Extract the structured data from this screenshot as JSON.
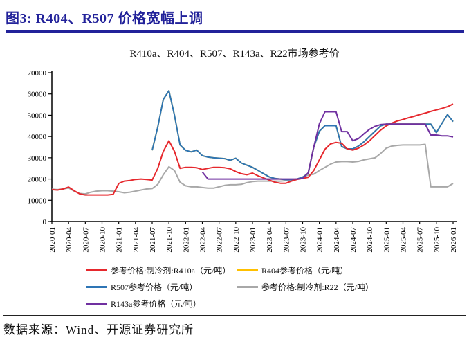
{
  "header": {
    "title": "图3:  R404、R507 价格宽幅上调",
    "accent_color": "#22229a"
  },
  "chart_data": {
    "type": "line",
    "title": "R410a、R404、R507、R143a、R22市场参考价",
    "ylabel": "",
    "xlabel": "",
    "ylim": [
      0,
      70000
    ],
    "ytick_step": 10000,
    "x_tick_every": 3,
    "grid": false,
    "legend_position": "bottom",
    "x": [
      "2020-01",
      "2020-02",
      "2020-03",
      "2020-04",
      "2020-05",
      "2020-06",
      "2020-07",
      "2020-08",
      "2020-09",
      "2020-10",
      "2020-11",
      "2020-12",
      "2021-01",
      "2021-02",
      "2021-03",
      "2021-04",
      "2021-05",
      "2021-06",
      "2021-07",
      "2021-08",
      "2021-09",
      "2021-10",
      "2021-11",
      "2021-12",
      "2022-01",
      "2022-02",
      "2022-03",
      "2022-04",
      "2022-05",
      "2022-06",
      "2022-07",
      "2022-08",
      "2022-09",
      "2022-10",
      "2022-11",
      "2022-12",
      "2023-01",
      "2023-02",
      "2023-03",
      "2023-04",
      "2023-05",
      "2023-06",
      "2023-07",
      "2023-08",
      "2023-09",
      "2023-10",
      "2023-11",
      "2023-12",
      "2024-01",
      "2024-02",
      "2024-03",
      "2024-04",
      "2024-05",
      "2024-06",
      "2024-07",
      "2024-08",
      "2024-09",
      "2024-10",
      "2024-11",
      "2024-12",
      "2025-01",
      "2025-02",
      "2025-03",
      "2025-04",
      "2025-05",
      "2025-06",
      "2025-07",
      "2025-08",
      "2025-09",
      "2025-10",
      "2025-11",
      "2025-12",
      "2026-01"
    ],
    "series": [
      {
        "name": "R404参考价格（元/吨）",
        "color": "#ffc000",
        "values": [
          null,
          null,
          null,
          null,
          null,
          null,
          null,
          null,
          null,
          null,
          null,
          null,
          null,
          null,
          null,
          null,
          null,
          null,
          33500,
          44500,
          57500,
          61500,
          50000,
          36000,
          33500,
          32800,
          33600,
          31000,
          30300,
          30000,
          29800,
          29600,
          28800,
          29800,
          27500,
          26500,
          25500,
          24000,
          22500,
          21000,
          20300,
          20000,
          19700,
          19700,
          20000,
          20800,
          22800,
          35000,
          42500,
          45100,
          45100,
          45100,
          35300,
          34200,
          34200,
          35500,
          37500,
          40000,
          42500,
          45000,
          45800,
          45800,
          45800,
          45800,
          45800,
          45800,
          45800,
          45800,
          45800,
          41800,
          46200,
          50300,
          47000
        ]
      },
      {
        "name": "参考价格:制冷剂:R22（元/吨）",
        "color": "#a8a8a8",
        "values": [
          15200,
          15000,
          15300,
          15800,
          14300,
          13200,
          13000,
          13800,
          14300,
          14500,
          14500,
          14300,
          14000,
          13500,
          13800,
          14300,
          14800,
          15300,
          15500,
          17500,
          22000,
          25800,
          24000,
          18500,
          16800,
          16300,
          16300,
          16000,
          15700,
          15700,
          16300,
          17000,
          17300,
          17300,
          17500,
          18300,
          18800,
          19000,
          19000,
          19000,
          19000,
          19000,
          19200,
          19500,
          20000,
          21000,
          21800,
          22300,
          24000,
          25500,
          27000,
          28000,
          28200,
          28200,
          28000,
          28300,
          29000,
          29500,
          30000,
          32000,
          34500,
          35500,
          35800,
          36000,
          36000,
          36000,
          36000,
          36300,
          16300,
          16300,
          16300,
          16300,
          17900
        ]
      },
      {
        "name": "R507参考价格（元/吨）",
        "color": "#2e75b5",
        "values": [
          null,
          null,
          null,
          null,
          null,
          null,
          null,
          null,
          null,
          null,
          null,
          null,
          null,
          null,
          null,
          null,
          null,
          null,
          33500,
          44500,
          57500,
          61500,
          50000,
          36000,
          33500,
          32800,
          33600,
          31000,
          30300,
          30000,
          29800,
          29600,
          28800,
          29800,
          27500,
          26500,
          25500,
          24000,
          22500,
          21000,
          20300,
          20000,
          19700,
          19700,
          20000,
          20800,
          22800,
          35000,
          42500,
          45100,
          45100,
          45100,
          35300,
          34200,
          34200,
          35500,
          37500,
          40000,
          42500,
          45000,
          45800,
          45800,
          45800,
          45800,
          45800,
          45800,
          45800,
          45800,
          45800,
          41800,
          46200,
          50300,
          47000
        ]
      },
      {
        "name": "参考价格:制冷剂:R410a（元/吨）",
        "color": "#e6282d",
        "values": [
          15000,
          14800,
          15300,
          16200,
          14500,
          13000,
          12500,
          12500,
          12500,
          12500,
          12500,
          12800,
          17900,
          19000,
          19300,
          19800,
          20000,
          19800,
          19500,
          25000,
          33000,
          38000,
          33000,
          25000,
          25500,
          25500,
          25300,
          24500,
          25000,
          25500,
          25500,
          25300,
          24800,
          23500,
          22500,
          22000,
          22800,
          21500,
          20500,
          19500,
          18500,
          18000,
          18000,
          19000,
          19800,
          20300,
          20800,
          24000,
          29000,
          34000,
          36500,
          37200,
          36800,
          34200,
          33600,
          34500,
          36000,
          38000,
          40500,
          43000,
          45000,
          46300,
          47300,
          48000,
          48800,
          49500,
          50300,
          51000,
          51800,
          52500,
          53200,
          54000,
          55300
        ]
      },
      {
        "name": "R143a参考价格（元/吨）",
        "color": "#7030a0",
        "values": [
          null,
          null,
          null,
          null,
          null,
          null,
          null,
          null,
          null,
          null,
          null,
          null,
          null,
          null,
          null,
          null,
          null,
          null,
          null,
          null,
          null,
          null,
          null,
          null,
          null,
          null,
          null,
          23300,
          20000,
          20000,
          20000,
          20000,
          20000,
          20000,
          20000,
          20000,
          20000,
          20000,
          20000,
          20000,
          20000,
          20000,
          20000,
          20000,
          20000,
          20300,
          23000,
          35000,
          46000,
          51600,
          51600,
          51600,
          42300,
          42300,
          38000,
          39000,
          41300,
          43400,
          44800,
          45600,
          45800,
          45800,
          45800,
          45800,
          45800,
          45800,
          45800,
          45800,
          40700,
          40700,
          40300,
          40300,
          39800
        ]
      }
    ]
  },
  "legend": {
    "items": [
      {
        "label": "参考价格:制冷剂:R410a（元/吨）",
        "color": "#e6282d"
      },
      {
        "label": "R404参考价格（元/吨）",
        "color": "#ffc000"
      },
      {
        "label": "R507参考价格（元/吨）",
        "color": "#2e75b5"
      },
      {
        "label": "参考价格:制冷剂:R22（元/吨）",
        "color": "#a8a8a8"
      },
      {
        "label": "R143a参考价格（元/吨）",
        "color": "#7030a0"
      }
    ]
  },
  "footer": {
    "source": "数据来源：Wind、开源证券研究所"
  }
}
